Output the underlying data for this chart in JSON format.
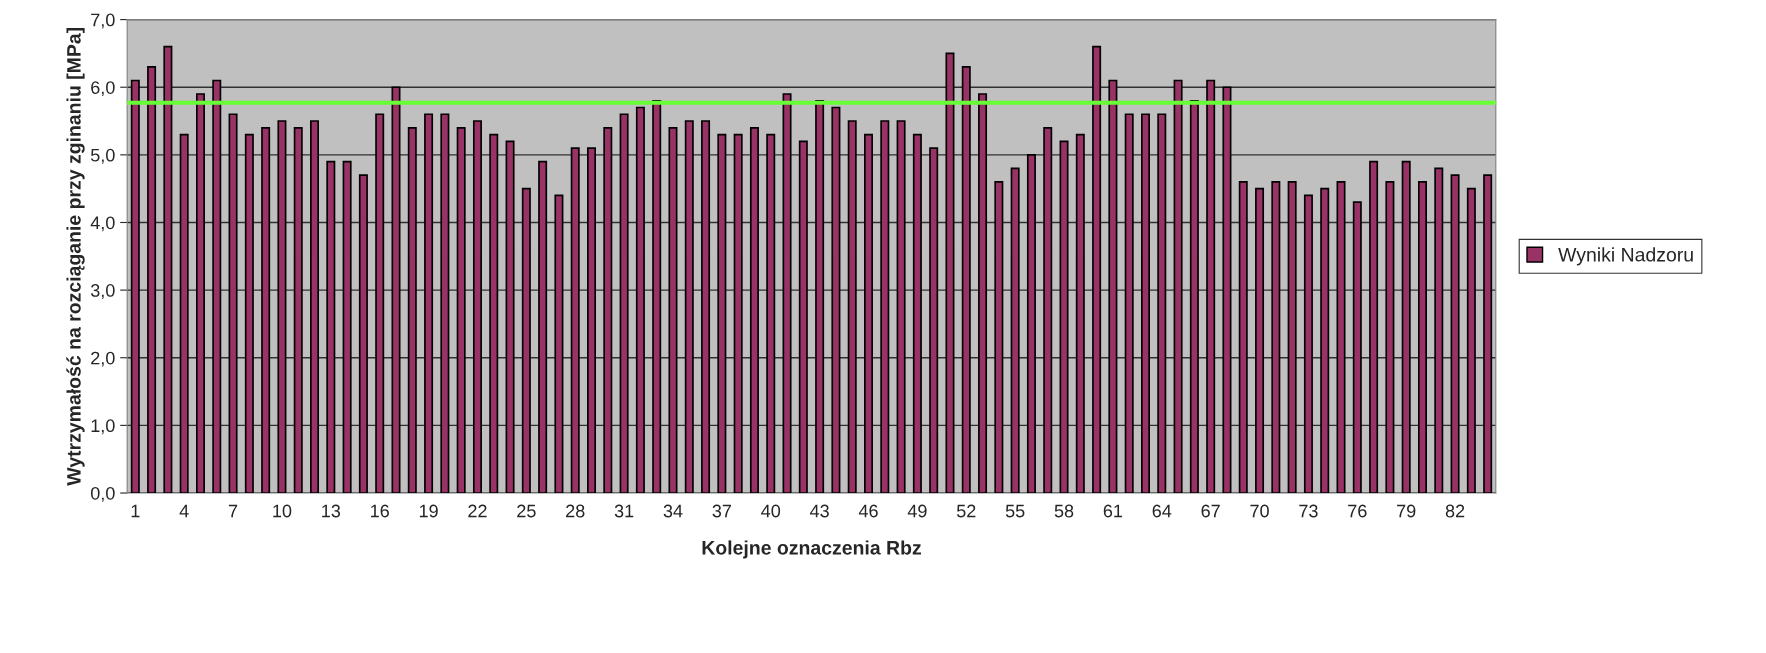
{
  "chart_data": {
    "type": "bar",
    "xlabel": "Kolejne oznaczenia Rbz",
    "ylabel": "Wytrzymałość na rozciąganie przy zginaniu [MPa]",
    "categories": [
      "1",
      null,
      null,
      "4",
      null,
      null,
      "7",
      null,
      null,
      "10",
      null,
      null,
      "13",
      null,
      null,
      "16",
      null,
      null,
      "19",
      null,
      null,
      "22",
      null,
      null,
      "25",
      null,
      null,
      "28",
      null,
      null,
      "31",
      null,
      null,
      "34",
      null,
      null,
      "37",
      null,
      null,
      "40",
      null,
      null,
      "43",
      null,
      null,
      "46",
      null,
      null,
      "49",
      null,
      null,
      "52",
      null,
      null,
      "55",
      null,
      null,
      "58",
      null,
      null,
      "61",
      null,
      null,
      "64",
      null,
      null,
      "67",
      null,
      null,
      "70",
      null,
      null,
      "73",
      null,
      null,
      "76",
      null,
      null,
      "79",
      null,
      null,
      "82",
      null,
      null
    ],
    "series": [
      {
        "name": "Wyniki Nadzoru",
        "color": "#993366",
        "values": [
          6.1,
          6.3,
          6.6,
          5.3,
          5.9,
          6.1,
          5.6,
          5.3,
          5.4,
          5.5,
          5.4,
          5.5,
          4.9,
          4.9,
          4.7,
          5.6,
          6.0,
          5.4,
          5.6,
          5.6,
          5.4,
          5.5,
          5.3,
          5.2,
          4.5,
          4.9,
          4.4,
          5.1,
          5.1,
          5.4,
          5.6,
          5.7,
          5.8,
          5.4,
          5.5,
          5.5,
          5.3,
          5.3,
          5.4,
          5.3,
          5.9,
          5.2,
          5.8,
          5.7,
          5.5,
          5.3,
          5.5,
          5.5,
          5.3,
          5.1,
          6.5,
          6.3,
          5.9,
          4.6,
          4.8,
          5.0,
          5.4,
          5.2,
          5.3,
          6.6,
          6.1,
          5.6,
          5.6,
          5.6,
          6.1,
          5.8,
          6.1,
          6.0,
          4.6,
          4.5,
          4.6,
          4.6,
          4.4,
          4.5,
          4.6,
          4.3,
          4.9,
          4.6,
          4.9,
          4.6,
          4.8,
          4.7,
          4.5,
          4.7
        ]
      }
    ],
    "ylim": [
      0,
      7
    ],
    "yticks": [
      {
        "value": 0,
        "label": "0,0"
      },
      {
        "value": 1,
        "label": "1,0"
      },
      {
        "value": 2,
        "label": "2,0"
      },
      {
        "value": 3,
        "label": "3,0"
      },
      {
        "value": 4,
        "label": "4,0"
      },
      {
        "value": 5,
        "label": "5,0"
      },
      {
        "value": 6,
        "label": "6,0"
      },
      {
        "value": 7,
        "label": "7,0"
      }
    ],
    "ref_lines": [
      {
        "axis": "y",
        "value": 5.77,
        "color": "#66ff33"
      }
    ],
    "grid": "y",
    "legend": "right"
  }
}
